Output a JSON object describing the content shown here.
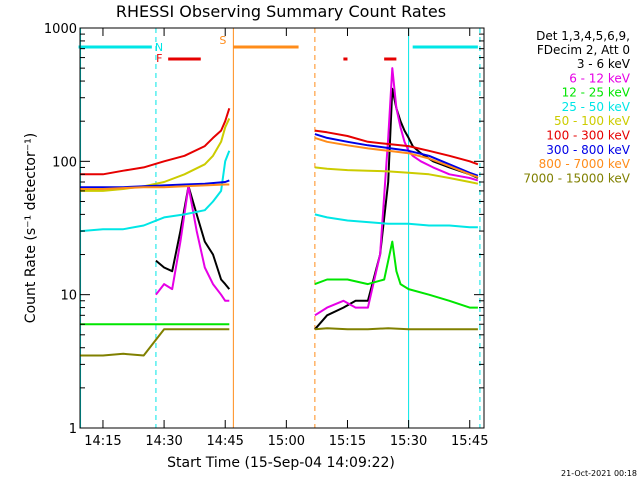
{
  "chart_data": {
    "type": "line",
    "title": "RHESSI Observing Summary Count Rates",
    "xlabel": "Start Time (15-Sep-04 14:09:22)",
    "ylabel": "Count Rate (s⁻¹ detector⁻¹)",
    "yscale": "log",
    "ylim": [
      1,
      1000
    ],
    "xlim": [
      "14:09:22",
      "15:48:30"
    ],
    "x_ticks": [
      "14:15",
      "14:30",
      "14:45",
      "15:00",
      "15:15",
      "15:30",
      "15:45"
    ],
    "y_ticks": [
      "1",
      "10",
      "100",
      "1000"
    ],
    "legend_header": [
      "Det 1,3,4,5,6,9,",
      "FDecim 2, Att 0"
    ],
    "legend_position": "right",
    "timestamp": "21-Oct-2021 00:18",
    "flags": [
      {
        "label": "N",
        "color": "#00e6e6",
        "ranges": [
          [
            "14:09",
            "14:27"
          ],
          [
            "15:31",
            "15:47"
          ]
        ],
        "level": "top"
      },
      {
        "label": "F",
        "color": "#e60000",
        "ranges": [
          [
            "14:31",
            "14:39"
          ],
          [
            "15:14",
            "15:15"
          ],
          [
            "15:24",
            "15:27"
          ]
        ],
        "level": "second"
      },
      {
        "label": "S",
        "color": "#ff8c1a",
        "ranges": [
          [
            "14:47",
            "15:03"
          ]
        ],
        "level": "top"
      }
    ],
    "vlines": [
      {
        "time": "14:09:30",
        "color": "#00e6e6",
        "style": "solid"
      },
      {
        "time": "14:28:00",
        "color": "#00e6e6",
        "style": "dashed"
      },
      {
        "time": "14:47:00",
        "color": "#ff8c1a",
        "style": "solid"
      },
      {
        "time": "15:07:00",
        "color": "#ff8c1a",
        "style": "dashed"
      },
      {
        "time": "15:30:00",
        "color": "#00e6e6",
        "style": "solid"
      },
      {
        "time": "15:47:30",
        "color": "#00e6e6",
        "style": "dashed"
      }
    ],
    "series": [
      {
        "name": "3 - 6 keV",
        "color": "#000000",
        "segments": [
          {
            "x": [
              "14:28",
              "14:30",
              "14:32",
              "14:34",
              "14:36",
              "14:38",
              "14:40",
              "14:42",
              "14:44",
              "14:45",
              "14:46"
            ],
            "y": [
              18,
              16,
              15,
              30,
              65,
              40,
              25,
              20,
              13,
              12,
              11
            ]
          },
          {
            "x": [
              "15:07",
              "15:10",
              "15:14",
              "15:17",
              "15:20",
              "15:23",
              "15:25",
              "15:26",
              "15:27",
              "15:28",
              "15:29",
              "15:30",
              "15:31",
              "15:33",
              "15:36",
              "15:40",
              "15:45",
              "15:47"
            ],
            "y": [
              5.5,
              7,
              8,
              9,
              9,
              20,
              70,
              350,
              250,
              200,
              170,
              150,
              130,
              115,
              100,
              90,
              80,
              75
            ]
          }
        ]
      },
      {
        "name": "6 - 12 keV",
        "color": "#e600e6",
        "segments": [
          {
            "x": [
              "14:28",
              "14:30",
              "14:32",
              "14:34",
              "14:36",
              "14:38",
              "14:40",
              "14:42",
              "14:44",
              "14:45",
              "14:46"
            ],
            "y": [
              10,
              12,
              11,
              25,
              65,
              30,
              16,
              12,
              10,
              9,
              9
            ]
          },
          {
            "x": [
              "15:07",
              "15:10",
              "15:14",
              "15:17",
              "15:20",
              "15:23",
              "15:25",
              "15:26",
              "15:27",
              "15:28",
              "15:29",
              "15:30",
              "15:31",
              "15:33",
              "15:36",
              "15:40",
              "15:45",
              "15:47"
            ],
            "y": [
              7,
              8,
              9,
              8,
              8,
              20,
              150,
              500,
              250,
              180,
              140,
              120,
              110,
              100,
              90,
              80,
              75,
              72
            ]
          }
        ]
      },
      {
        "name": "12 - 25 keV",
        "color": "#00e600",
        "segments": [
          {
            "x": [
              "14:09:30",
              "14:15",
              "14:20",
              "14:25",
              "14:30",
              "14:35",
              "14:40",
              "14:45",
              "14:46"
            ],
            "y": [
              6,
              6,
              6,
              6,
              6,
              6,
              6,
              6,
              6
            ]
          },
          {
            "x": [
              "15:07",
              "15:10",
              "15:15",
              "15:20",
              "15:24",
              "15:26",
              "15:27",
              "15:28",
              "15:30",
              "15:35",
              "15:40",
              "15:45",
              "15:47"
            ],
            "y": [
              12,
              13,
              13,
              12,
              13,
              25,
              15,
              12,
              11,
              10,
              9,
              8,
              8
            ]
          }
        ]
      },
      {
        "name": "25 - 50 keV",
        "color": "#00e6e6",
        "segments": [
          {
            "x": [
              "14:09:30",
              "14:15",
              "14:20",
              "14:25",
              "14:30",
              "14:35",
              "14:40",
              "14:42",
              "14:44",
              "14:45",
              "14:46"
            ],
            "y": [
              30,
              31,
              31,
              33,
              38,
              40,
              43,
              50,
              60,
              100,
              120
            ]
          },
          {
            "x": [
              "15:07",
              "15:10",
              "15:15",
              "15:20",
              "15:25",
              "15:30",
              "15:35",
              "15:40",
              "15:45",
              "15:47"
            ],
            "y": [
              40,
              38,
              36,
              35,
              34,
              34,
              33,
              33,
              32,
              32
            ]
          }
        ]
      },
      {
        "name": "50 - 100 keV",
        "color": "#cccc00",
        "segments": [
          {
            "x": [
              "14:09:30",
              "14:15",
              "14:20",
              "14:25",
              "14:30",
              "14:35",
              "14:40",
              "14:42",
              "14:44",
              "14:45",
              "14:46"
            ],
            "y": [
              60,
              60,
              62,
              65,
              70,
              80,
              95,
              110,
              140,
              180,
              210
            ]
          },
          {
            "x": [
              "15:07",
              "15:10",
              "15:15",
              "15:20",
              "15:25",
              "15:30",
              "15:35",
              "15:40",
              "15:45",
              "15:47"
            ],
            "y": [
              90,
              88,
              86,
              85,
              84,
              82,
              80,
              75,
              70,
              68
            ]
          }
        ]
      },
      {
        "name": "100 - 300 keV",
        "color": "#e60000",
        "segments": [
          {
            "x": [
              "14:09:30",
              "14:15",
              "14:20",
              "14:25",
              "14:30",
              "14:35",
              "14:40",
              "14:42",
              "14:44",
              "14:45",
              "14:46"
            ],
            "y": [
              80,
              80,
              85,
              90,
              100,
              110,
              130,
              150,
              170,
              200,
              250
            ]
          },
          {
            "x": [
              "15:07",
              "15:10",
              "15:15",
              "15:20",
              "15:25",
              "15:30",
              "15:35",
              "15:40",
              "15:45",
              "15:47"
            ],
            "y": [
              170,
              165,
              155,
              140,
              135,
              130,
              120,
              110,
              100,
              95
            ]
          }
        ]
      },
      {
        "name": "300 - 800 keV",
        "color": "#0000e6",
        "segments": [
          {
            "x": [
              "14:09:30",
              "14:15",
              "14:20",
              "14:25",
              "14:30",
              "14:35",
              "14:40",
              "14:45",
              "14:46"
            ],
            "y": [
              64,
              64,
              64,
              65,
              66,
              67,
              68,
              70,
              72
            ]
          },
          {
            "x": [
              "15:07",
              "15:10",
              "15:15",
              "15:20",
              "15:25",
              "15:30",
              "15:35",
              "15:40",
              "15:45",
              "15:47"
            ],
            "y": [
              160,
              150,
              140,
              132,
              126,
              120,
              110,
              95,
              82,
              78
            ]
          }
        ]
      },
      {
        "name": "800 - 7000 keV",
        "color": "#ff8c1a",
        "segments": [
          {
            "x": [
              "14:09:30",
              "14:15",
              "14:20",
              "14:25",
              "14:30",
              "14:35",
              "14:40",
              "14:45",
              "14:46"
            ],
            "y": [
              62,
              62,
              63,
              64,
              64,
              65,
              66,
              67,
              67
            ]
          },
          {
            "x": [
              "15:07",
              "15:10",
              "15:15",
              "15:20",
              "15:25",
              "15:30",
              "15:35",
              "15:40",
              "15:45",
              "15:47"
            ],
            "y": [
              150,
              140,
              132,
              125,
              120,
              115,
              105,
              92,
              80,
              76
            ]
          }
        ]
      },
      {
        "name": "7000 - 15000 keV",
        "color": "#808000",
        "segments": [
          {
            "x": [
              "14:09:30",
              "14:15",
              "14:20",
              "14:25",
              "14:30",
              "14:35",
              "14:40",
              "14:45",
              "14:46"
            ],
            "y": [
              3.5,
              3.5,
              3.6,
              3.5,
              5.5,
              5.5,
              5.5,
              5.5,
              5.5
            ]
          },
          {
            "x": [
              "15:07",
              "15:10",
              "15:15",
              "15:20",
              "15:25",
              "15:30",
              "15:35",
              "15:40",
              "15:45",
              "15:47"
            ],
            "y": [
              5.5,
              5.6,
              5.5,
              5.5,
              5.6,
              5.5,
              5.5,
              5.5,
              5.5,
              5.5
            ]
          }
        ]
      }
    ]
  }
}
